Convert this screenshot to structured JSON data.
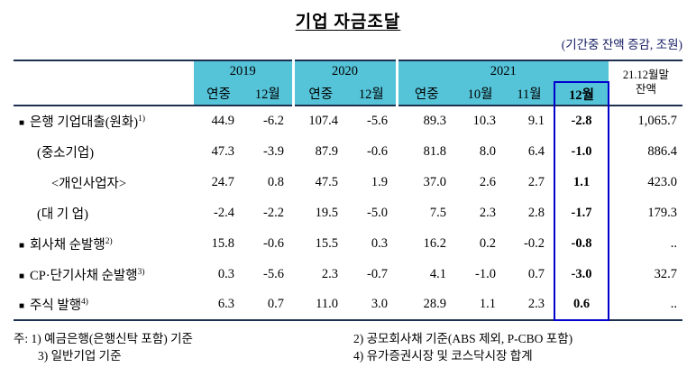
{
  "title": "기업 자금조달",
  "unit_note": "(기간중 잔액 증감, 조원)",
  "glyphs": {
    "bullet": "■"
  },
  "colors": {
    "header_bg": "#55c3d8",
    "line_navy": "#1e3050",
    "highlight_blue": "#0000cd",
    "note_color": "#121a60"
  },
  "table": {
    "groups": [
      {
        "label": "2019",
        "sub": [
          "연중",
          "12월"
        ]
      },
      {
        "label": "2020",
        "sub": [
          "연중",
          "12월"
        ]
      },
      {
        "label": "2021",
        "sub": [
          "연중",
          "10월",
          "11월",
          "12월"
        ]
      }
    ],
    "highlight_col": 7,
    "balance_header_line1": "21.12월말",
    "balance_header_line2": "잔액",
    "rows": [
      {
        "label": "은행 기업대출(원화)",
        "bullet": true,
        "sup": "1)",
        "indent": 0,
        "values": [
          "44.9",
          "-6.2",
          "107.4",
          "-5.6",
          "89.3",
          "10.3",
          "9.1",
          "-2.8",
          "1,065.7"
        ]
      },
      {
        "label": "(중소기업)",
        "bullet": false,
        "sup": "",
        "indent": 1,
        "values": [
          "47.3",
          "-3.9",
          "87.9",
          "-0.6",
          "81.8",
          "8.0",
          "6.4",
          "-1.0",
          "886.4"
        ]
      },
      {
        "label": "<개인사업자>",
        "bullet": false,
        "sup": "",
        "indent": 2,
        "values": [
          "24.7",
          "0.8",
          "47.5",
          "1.9",
          "37.0",
          "2.6",
          "2.7",
          "1.1",
          "423.0"
        ]
      },
      {
        "label": "(대 기 업)",
        "bullet": false,
        "sup": "",
        "indent": 1,
        "values": [
          "-2.4",
          "-2.2",
          "19.5",
          "-5.0",
          "7.5",
          "2.3",
          "2.8",
          "-1.7",
          "179.3"
        ]
      },
      {
        "label": "회사채 순발행",
        "bullet": true,
        "sup": "2)",
        "indent": 0,
        "values": [
          "15.8",
          "-0.6",
          "15.5",
          "0.3",
          "16.2",
          "0.2",
          "-0.2",
          "-0.8",
          ".."
        ]
      },
      {
        "label": "CP·단기사채 순발행",
        "bullet": true,
        "sup": "3)",
        "indent": 0,
        "values": [
          "0.3",
          "-5.6",
          "2.3",
          "-0.7",
          "4.1",
          "-1.0",
          "0.7",
          "-3.0",
          "32.7"
        ]
      },
      {
        "label": "주식 발행",
        "bullet": true,
        "sup": "4)",
        "indent": 0,
        "values": [
          "6.3",
          "0.7",
          "11.0",
          "3.0",
          "28.9",
          "1.1",
          "2.3",
          "0.6",
          ".."
        ]
      }
    ]
  },
  "footnotes": {
    "left_lines": [
      "주: 1) 예금은행(은행신탁 포함) 기준",
      "3) 일반기업 기준"
    ],
    "right_lines": [
      "2) 공모회사채 기준(ABS 제외, P-CBO 포함)",
      "4) 유가증권시장 및 코스닥시장 합계"
    ]
  }
}
